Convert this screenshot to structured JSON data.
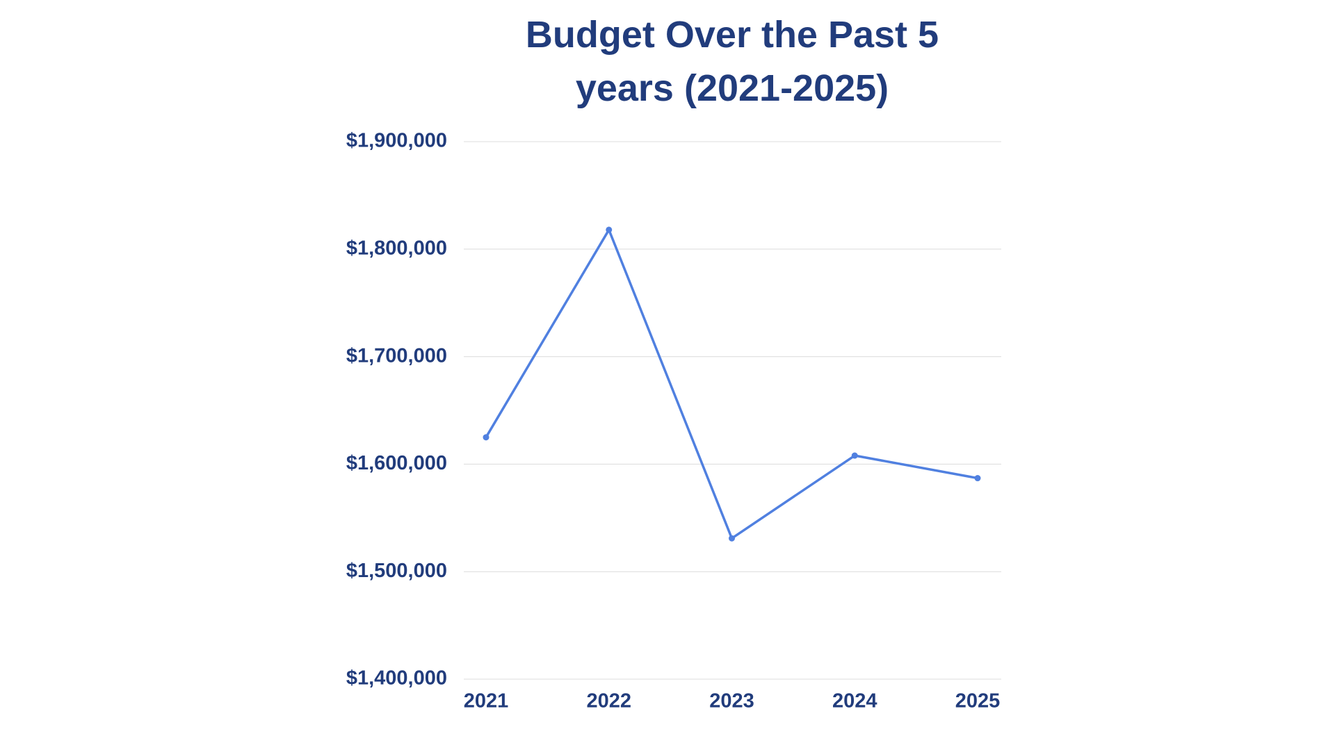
{
  "chart_data": {
    "type": "line",
    "title": "Budget Over the Past 5 years (2021-2025)",
    "categories": [
      "2021",
      "2022",
      "2023",
      "2024",
      "2025"
    ],
    "values": [
      1625000,
      1818000,
      1531000,
      1608000,
      1587000
    ],
    "color": "#5080e0",
    "ylim": [
      1400000,
      1900000
    ],
    "yticks": [
      {
        "value": 1400000,
        "label": "$1,400,000"
      },
      {
        "value": 1500000,
        "label": "$1,500,000"
      },
      {
        "value": 1600000,
        "label": "$1,600,000"
      },
      {
        "value": 1700000,
        "label": "$1,700,000"
      },
      {
        "value": 1800000,
        "label": "$1,800,000"
      },
      {
        "value": 1900000,
        "label": "$1,900,000"
      }
    ],
    "grid": true
  }
}
